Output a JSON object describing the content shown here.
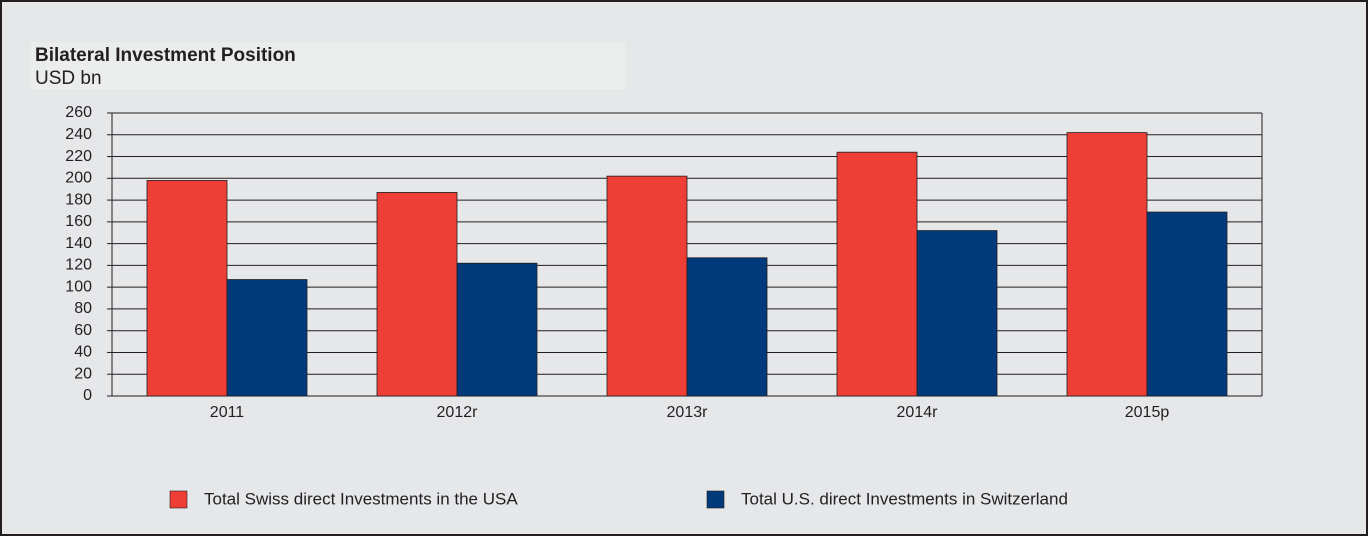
{
  "chart_data": {
    "type": "bar",
    "title": "Bilateral Investment Position",
    "subtitle": "USD bn",
    "categories": [
      "2011",
      "2012r",
      "2013r",
      "2014r",
      "2015p"
    ],
    "series": [
      {
        "name": "Total Swiss direct Investments in the USA",
        "color": "#ee3e35",
        "values": [
          198,
          187,
          202,
          224,
          242
        ]
      },
      {
        "name": "Total U.S. direct Investments in Switzerland",
        "color": "#003a7a",
        "values": [
          107,
          122,
          127,
          152,
          169
        ]
      }
    ],
    "ylim": [
      0,
      260
    ],
    "yticks": [
      0,
      20,
      40,
      60,
      80,
      100,
      120,
      140,
      160,
      180,
      200,
      220,
      240,
      260
    ],
    "grid": true
  }
}
